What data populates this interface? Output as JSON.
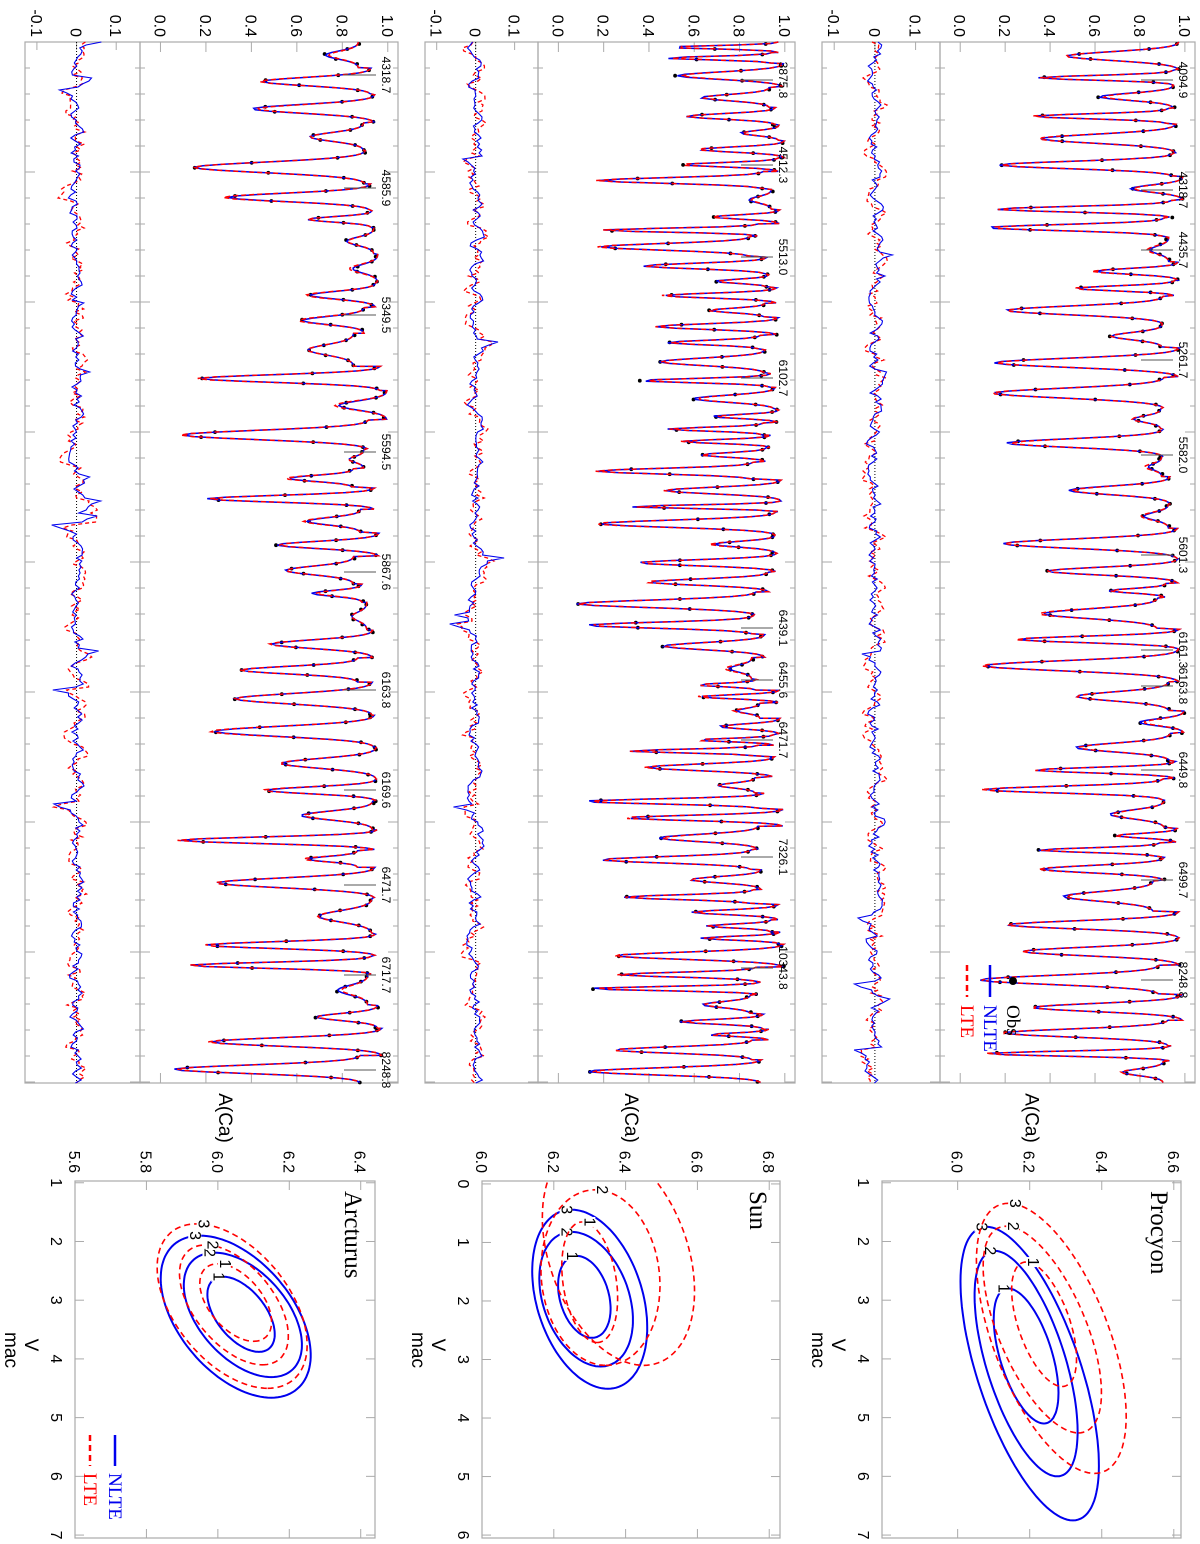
{
  "figure": {
    "spectrum_yticks": [
      "0.0",
      "0.2",
      "0.4",
      "0.6",
      "0.8",
      "1.0"
    ],
    "residual_yticks": [
      "-0.1",
      "0",
      "0.1"
    ],
    "spectrum_legend": {
      "obs": "Obs",
      "nlte": "NLTE",
      "lte": "LTE"
    },
    "contour_legend": {
      "nlte": "NLTE",
      "lte": "LTE"
    },
    "contour_ylabel": "A(Ca)",
    "contour_xlabel": "V",
    "contour_xlabel_sub": "mac"
  },
  "colors": {
    "obs": "#000000",
    "nlte": "#0000ee",
    "lte": "#ff0000",
    "frame": "#aaaaaa"
  },
  "chart_data": [
    {
      "star": "Procyon",
      "spectrum": {
        "type": "line",
        "ylim": [
          -0.09,
          1.045
        ],
        "series": [
          "Obs",
          "NLTE",
          "LTE"
        ],
        "line_labels": [
          "4094.9",
          "4318.7",
          "4435.7",
          "5261.7",
          "5582.0",
          "5601.3",
          "6161.3",
          "6163.8",
          "6449.8",
          "6499.7",
          "8248.8"
        ]
      },
      "residual": {
        "type": "line",
        "ylim": [
          -0.13,
          0.16
        ],
        "zero_line": "dotted"
      },
      "contour": {
        "type": "contour",
        "xlim": [
          0.97,
          7.05
        ],
        "ylim": [
          5.79,
          6.62
        ],
        "xticks": [
          "1",
          "2",
          "3",
          "4",
          "5",
          "6",
          "7"
        ],
        "yticks": [
          "6.0",
          "6.2",
          "6.4",
          "6.6"
        ],
        "levels": [
          {
            "series": "NLTE",
            "level": "3",
            "cx": 4.25,
            "cy": 6.2,
            "rx": 2.5,
            "ry": 0.15,
            "k": 0.048
          },
          {
            "series": "NLTE",
            "level": "2",
            "cx": 4.08,
            "cy": 6.19,
            "rx": 1.92,
            "ry": 0.114,
            "k": 0.045
          },
          {
            "series": "NLTE",
            "level": "1",
            "cx": 3.95,
            "cy": 6.19,
            "rx": 1.15,
            "ry": 0.075,
            "k": 0.043
          },
          {
            "series": "LTE",
            "level": "3",
            "cx": 3.65,
            "cy": 6.26,
            "rx": 2.3,
            "ry": 0.17,
            "k": 0.052
          },
          {
            "series": "LTE",
            "level": "2",
            "cx": 3.5,
            "cy": 6.235,
            "rx": 1.76,
            "ry": 0.13,
            "k": 0.057
          },
          {
            "series": "LTE",
            "level": "1",
            "cx": 3.41,
            "cy": 6.24,
            "rx": 1.06,
            "ry": 0.075,
            "k": 0.047
          }
        ]
      }
    },
    {
      "star": "Sun",
      "spectrum": {
        "type": "line",
        "ylim": [
          -0.09,
          1.045
        ],
        "series": [
          "Obs",
          "NLTE",
          "LTE"
        ],
        "line_labels": [
          "3875.8",
          "4512.3",
          "5513.0",
          "6102.7",
          "6439.1",
          "6455.6",
          "6471.7",
          "7326.1",
          "10343.8"
        ]
      },
      "residual": {
        "type": "line",
        "ylim": [
          -0.13,
          0.16
        ],
        "zero_line": "dotted"
      },
      "contour": {
        "type": "contour",
        "xlim": [
          -0.05,
          6.05
        ],
        "ylim": [
          6.0,
          6.83
        ],
        "xticks": [
          "0",
          "1",
          "2",
          "3",
          "4",
          "5",
          "6"
        ],
        "yticks": [
          "6.0",
          "6.2",
          "6.4",
          "6.6",
          "6.8"
        ],
        "levels": [
          {
            "series": "NLTE",
            "level": "3",
            "cx": 1.97,
            "cy": 6.3,
            "rx": 1.53,
            "ry": 0.152,
            "k": 0.033
          },
          {
            "series": "NLTE",
            "level": "2",
            "cx": 1.97,
            "cy": 6.29,
            "rx": 1.15,
            "ry": 0.124,
            "k": 0.035
          },
          {
            "series": "NLTE",
            "level": "1",
            "cx": 1.93,
            "cy": 6.285,
            "rx": 0.7,
            "ry": 0.07,
            "k": 0.03
          },
          {
            "series": "LTE",
            "level": "3",
            "cx": 1.2,
            "cy": 6.38,
            "rx": 1.9,
            "ry": 0.2,
            "k": 0.037
          },
          {
            "series": "LTE",
            "level": "2",
            "cx": 1.6,
            "cy": 6.33,
            "rx": 1.5,
            "ry": 0.165,
            "k": 0.01
          },
          {
            "series": "LTE",
            "level": "1",
            "cx": 1.68,
            "cy": 6.3,
            "rx": 1.03,
            "ry": 0.075,
            "k": 0.02
          }
        ]
      }
    },
    {
      "star": "Arcturus",
      "spectrum": {
        "type": "line",
        "ylim": [
          -0.09,
          1.045
        ],
        "series": [
          "Obs",
          "NLTE",
          "LTE"
        ],
        "line_labels": [
          "4318.7",
          "4585.9",
          "5349.5",
          "5594.5",
          "5867.6",
          "6163.8",
          "6169.6",
          "6471.7",
          "6717.7",
          "8248.8"
        ]
      },
      "residual": {
        "type": "line",
        "ylim": [
          -0.13,
          0.16
        ],
        "zero_line": "dotted"
      },
      "contour": {
        "type": "contour",
        "xlim": [
          0.97,
          7.05
        ],
        "ylim": [
          5.6,
          6.44
        ],
        "xticks": [
          "1",
          "2",
          "3",
          "4",
          "5",
          "6",
          "7"
        ],
        "yticks": [
          "5.6",
          "5.8",
          "6.0",
          "6.2",
          "6.4"
        ],
        "levels": [
          {
            "series": "NLTE",
            "level": "3",
            "cx": 3.28,
            "cy": 6.05,
            "rx": 1.38,
            "ry": 0.185,
            "k": 0.072
          },
          {
            "series": "NLTE",
            "level": "2",
            "cx": 3.25,
            "cy": 6.07,
            "rx": 1.06,
            "ry": 0.145,
            "k": 0.075
          },
          {
            "series": "NLTE",
            "level": "1",
            "cx": 3.24,
            "cy": 6.065,
            "rx": 0.64,
            "ry": 0.08,
            "k": 0.078
          },
          {
            "series": "LTE",
            "level": "3",
            "cx": 3.1,
            "cy": 6.04,
            "rx": 1.4,
            "ry": 0.185,
            "k": 0.071
          },
          {
            "series": "LTE",
            "level": "2",
            "cx": 3.08,
            "cy": 6.045,
            "rx": 1.02,
            "ry": 0.13,
            "k": 0.078
          },
          {
            "series": "LTE",
            "level": "1",
            "cx": 3.04,
            "cy": 6.05,
            "rx": 0.66,
            "ry": 0.087,
            "k": 0.076
          }
        ]
      }
    }
  ]
}
